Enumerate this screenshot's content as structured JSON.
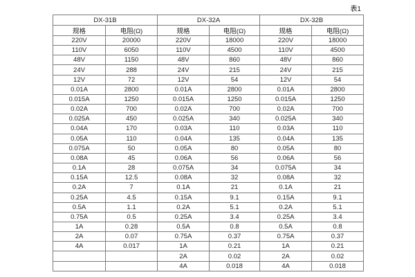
{
  "caption": "表1",
  "table": {
    "groups": [
      "DX-31B",
      "DX-32A",
      "DX-32B"
    ],
    "subheaders": [
      "规格",
      "电阻(Ω)"
    ],
    "rows": [
      [
        "220V",
        "20000",
        "220V",
        "18000",
        "220V",
        "18000"
      ],
      [
        "110V",
        "6050",
        "110V",
        "4500",
        "110V",
        "4500"
      ],
      [
        "48V",
        "1150",
        "48V",
        "860",
        "48V",
        "860"
      ],
      [
        "24V",
        "288",
        "24V",
        "215",
        "24V",
        "215"
      ],
      [
        "12V",
        "72",
        "12V",
        "54",
        "12V",
        "54"
      ],
      [
        "0.01A",
        "2800",
        "0.01A",
        "2800",
        "0.01A",
        "2800"
      ],
      [
        "0.015A",
        "1250",
        "0.015A",
        "1250",
        "0.015A",
        "1250"
      ],
      [
        "0.02A",
        "700",
        "0.02A",
        "700",
        "0.02A",
        "700"
      ],
      [
        "0.025A",
        "450",
        "0.025A",
        "340",
        "0.025A",
        "340"
      ],
      [
        "0.04A",
        "170",
        "0.03A",
        "110",
        "0.03A",
        "110"
      ],
      [
        "0.05A",
        "110",
        "0.04A",
        "135",
        "0.04A",
        "135"
      ],
      [
        "0.075A",
        "50",
        "0.05A",
        "80",
        "0.05A",
        "80"
      ],
      [
        "0.08A",
        "45",
        "0.06A",
        "56",
        "0.06A",
        "56"
      ],
      [
        "0.1A",
        "28",
        "0.075A",
        "34",
        "0.075A",
        "34"
      ],
      [
        "0.15A",
        "12.5",
        "0.08A",
        "32",
        "0.08A",
        "32"
      ],
      [
        "0.2A",
        "7",
        "0.1A",
        "21",
        "0.1A",
        "21"
      ],
      [
        "0.25A",
        "4.5",
        "0.15A",
        "9.1",
        "0.15A",
        "9.1"
      ],
      [
        "0.5A",
        "1.1",
        "0.2A",
        "5.1",
        "0.2A",
        "5.1"
      ],
      [
        "0.75A",
        "0.5",
        "0.25A",
        "3.4",
        "0.25A",
        "3.4"
      ],
      [
        "1A",
        "0.28",
        "0.5A",
        "0.8",
        "0.5A",
        "0.8"
      ],
      [
        "2A",
        "0.07",
        "0.75A",
        "0.37",
        "0.75A",
        "0.37"
      ],
      [
        "4A",
        "0.017",
        "1A",
        "0.21",
        "1A",
        "0.21"
      ],
      [
        "",
        "",
        "2A",
        "0.02",
        "2A",
        "0.02"
      ],
      [
        "",
        "",
        "4A",
        "0.018",
        "4A",
        "0.018"
      ]
    ]
  }
}
